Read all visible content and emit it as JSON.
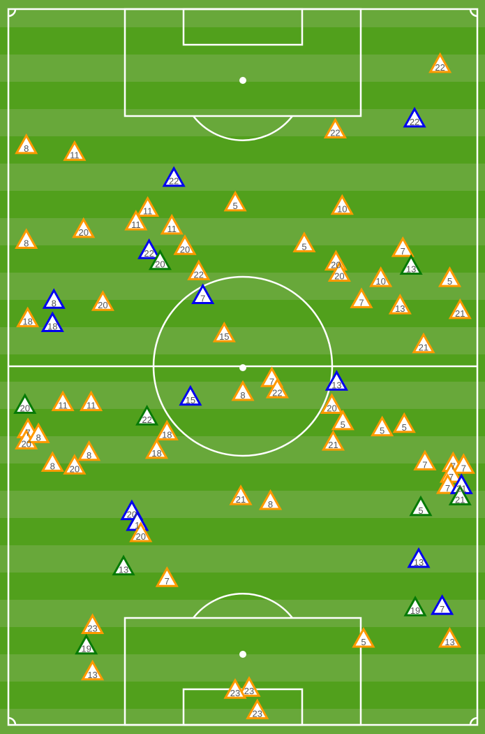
{
  "pitch": {
    "length_m": 105,
    "width_m": 68,
    "line_color": "#ffffff",
    "grass_light": "#68a83a",
    "grass_dark": "#51a01c"
  },
  "colors": {
    "orange": "#ff9900",
    "blue": "#0000ee",
    "green": "#067a06"
  },
  "chart_data": {
    "type": "scatter",
    "marker": "triangle",
    "units": "metres from top-left corner of pitch (x across, y along)",
    "points": [
      {
        "x": 62.6,
        "y": 8.6,
        "label": "22",
        "color": "orange"
      },
      {
        "x": 47.4,
        "y": 18.2,
        "label": "22",
        "color": "orange"
      },
      {
        "x": 58.9,
        "y": 16.6,
        "label": "22",
        "color": "blue"
      },
      {
        "x": 2.6,
        "y": 20.5,
        "label": "8",
        "color": "orange"
      },
      {
        "x": 9.6,
        "y": 21.5,
        "label": "11",
        "color": "orange"
      },
      {
        "x": 24.0,
        "y": 25.3,
        "label": "22",
        "color": "blue"
      },
      {
        "x": 32.9,
        "y": 28.9,
        "label": "5",
        "color": "orange"
      },
      {
        "x": 48.4,
        "y": 29.4,
        "label": "10",
        "color": "orange"
      },
      {
        "x": 20.2,
        "y": 29.7,
        "label": "11",
        "color": "orange"
      },
      {
        "x": 18.5,
        "y": 31.7,
        "label": "11",
        "color": "orange"
      },
      {
        "x": 23.7,
        "y": 32.3,
        "label": "11",
        "color": "orange"
      },
      {
        "x": 10.9,
        "y": 32.8,
        "label": "20",
        "color": "orange"
      },
      {
        "x": 2.6,
        "y": 34.4,
        "label": "8",
        "color": "orange"
      },
      {
        "x": 42.9,
        "y": 34.9,
        "label": "5",
        "color": "orange"
      },
      {
        "x": 25.6,
        "y": 35.3,
        "label": "20",
        "color": "orange"
      },
      {
        "x": 20.4,
        "y": 35.9,
        "label": "22",
        "color": "blue"
      },
      {
        "x": 22.0,
        "y": 37.5,
        "label": "20",
        "color": "green"
      },
      {
        "x": 27.6,
        "y": 39.0,
        "label": "22",
        "color": "orange"
      },
      {
        "x": 57.2,
        "y": 35.6,
        "label": "7",
        "color": "orange"
      },
      {
        "x": 47.5,
        "y": 38.2,
        "label": "20",
        "color": "orange"
      },
      {
        "x": 48.0,
        "y": 38.6,
        "label": "20",
        "color": "orange"
      },
      {
        "x": 58.4,
        "y": 38.2,
        "label": "13",
        "color": "green"
      },
      {
        "x": 54.0,
        "y": 40.0,
        "label": "10",
        "color": "orange"
      },
      {
        "x": 64.0,
        "y": 40.0,
        "label": "5",
        "color": "orange"
      },
      {
        "x": 28.2,
        "y": 42.5,
        "label": "7",
        "color": "blue"
      },
      {
        "x": 6.6,
        "y": 43.2,
        "label": "8",
        "color": "blue"
      },
      {
        "x": 13.7,
        "y": 43.5,
        "label": "20",
        "color": "orange"
      },
      {
        "x": 51.2,
        "y": 43.1,
        "label": "7",
        "color": "orange"
      },
      {
        "x": 56.8,
        "y": 44.0,
        "label": "13",
        "color": "orange"
      },
      {
        "x": 65.5,
        "y": 44.7,
        "label": "21",
        "color": "orange"
      },
      {
        "x": 2.8,
        "y": 45.9,
        "label": "18",
        "color": "orange"
      },
      {
        "x": 6.4,
        "y": 46.6,
        "label": "18",
        "color": "blue"
      },
      {
        "x": 31.3,
        "y": 48.1,
        "label": "15",
        "color": "orange"
      },
      {
        "x": 60.2,
        "y": 49.7,
        "label": "21",
        "color": "orange"
      },
      {
        "x": 38.2,
        "y": 54.9,
        "label": "7",
        "color": "orange"
      },
      {
        "x": 39.0,
        "y": 56.1,
        "label": "22",
        "color": "orange"
      },
      {
        "x": 47.6,
        "y": 55.2,
        "label": "13",
        "color": "blue"
      },
      {
        "x": 34.0,
        "y": 56.7,
        "label": "8",
        "color": "orange"
      },
      {
        "x": 26.4,
        "y": 57.4,
        "label": "15",
        "color": "blue"
      },
      {
        "x": 2.4,
        "y": 58.6,
        "label": "20",
        "color": "green"
      },
      {
        "x": 7.9,
        "y": 58.2,
        "label": "11",
        "color": "orange"
      },
      {
        "x": 12.0,
        "y": 58.2,
        "label": "11",
        "color": "orange"
      },
      {
        "x": 46.9,
        "y": 58.6,
        "label": "20",
        "color": "orange"
      },
      {
        "x": 20.1,
        "y": 60.3,
        "label": "22",
        "color": "green"
      },
      {
        "x": 48.5,
        "y": 61.0,
        "label": "5",
        "color": "orange"
      },
      {
        "x": 54.2,
        "y": 61.9,
        "label": "5",
        "color": "orange"
      },
      {
        "x": 57.4,
        "y": 61.4,
        "label": "5",
        "color": "orange"
      },
      {
        "x": 23.0,
        "y": 62.5,
        "label": "18",
        "color": "orange"
      },
      {
        "x": 21.5,
        "y": 65.2,
        "label": "18",
        "color": "orange"
      },
      {
        "x": 3.2,
        "y": 62.3,
        "label": "7",
        "color": "orange"
      },
      {
        "x": 2.6,
        "y": 63.7,
        "label": "20",
        "color": "orange"
      },
      {
        "x": 4.0,
        "y": 62.9,
        "label": "8",
        "color": "orange"
      },
      {
        "x": 47.1,
        "y": 64.0,
        "label": "21",
        "color": "orange"
      },
      {
        "x": 11.7,
        "y": 65.5,
        "label": "8",
        "color": "orange"
      },
      {
        "x": 6.4,
        "y": 67.1,
        "label": "8",
        "color": "orange"
      },
      {
        "x": 9.6,
        "y": 67.5,
        "label": "20",
        "color": "orange"
      },
      {
        "x": 60.4,
        "y": 66.9,
        "label": "7",
        "color": "orange"
      },
      {
        "x": 64.7,
        "y": 67.4,
        "label": "7",
        "color": "orange"
      },
      {
        "x": 65.8,
        "y": 67.4,
        "label": "7",
        "color": "orange"
      },
      {
        "x": 64.2,
        "y": 68.7,
        "label": "7",
        "color": "orange"
      },
      {
        "x": 63.7,
        "y": 70.1,
        "label": "7",
        "color": "orange"
      },
      {
        "x": 65.7,
        "y": 70.8,
        "label": "21",
        "color": "blue"
      },
      {
        "x": 65.5,
        "y": 71.6,
        "label": "21",
        "color": "green"
      },
      {
        "x": 33.7,
        "y": 72.0,
        "label": "21",
        "color": "orange"
      },
      {
        "x": 38.0,
        "y": 72.7,
        "label": "8",
        "color": "orange"
      },
      {
        "x": 59.8,
        "y": 73.6,
        "label": "5",
        "color": "green"
      },
      {
        "x": 17.9,
        "y": 74.2,
        "label": "20",
        "color": "blue"
      },
      {
        "x": 18.7,
        "y": 75.9,
        "label": "1",
        "color": "blue"
      },
      {
        "x": 19.2,
        "y": 77.3,
        "label": "20",
        "color": "orange"
      },
      {
        "x": 16.7,
        "y": 82.3,
        "label": "13",
        "color": "green"
      },
      {
        "x": 23.0,
        "y": 84.0,
        "label": "7",
        "color": "orange"
      },
      {
        "x": 59.5,
        "y": 81.2,
        "label": "13",
        "color": "blue"
      },
      {
        "x": 59.0,
        "y": 88.3,
        "label": "19",
        "color": "green"
      },
      {
        "x": 62.9,
        "y": 88.1,
        "label": "7",
        "color": "blue"
      },
      {
        "x": 12.2,
        "y": 90.9,
        "label": "23",
        "color": "orange"
      },
      {
        "x": 11.3,
        "y": 93.9,
        "label": "19",
        "color": "green"
      },
      {
        "x": 51.5,
        "y": 92.9,
        "label": "5",
        "color": "orange"
      },
      {
        "x": 64.0,
        "y": 92.9,
        "label": "13",
        "color": "orange"
      },
      {
        "x": 12.2,
        "y": 97.7,
        "label": "13",
        "color": "orange"
      },
      {
        "x": 34.4,
        "y": 100.1,
        "label": "23",
        "color": "orange"
      },
      {
        "x": 33.4,
        "y": 100.4,
        "label": "23",
        "color": "orange"
      },
      {
        "x": 36.1,
        "y": 103.4,
        "label": "23",
        "color": "orange"
      }
    ]
  }
}
